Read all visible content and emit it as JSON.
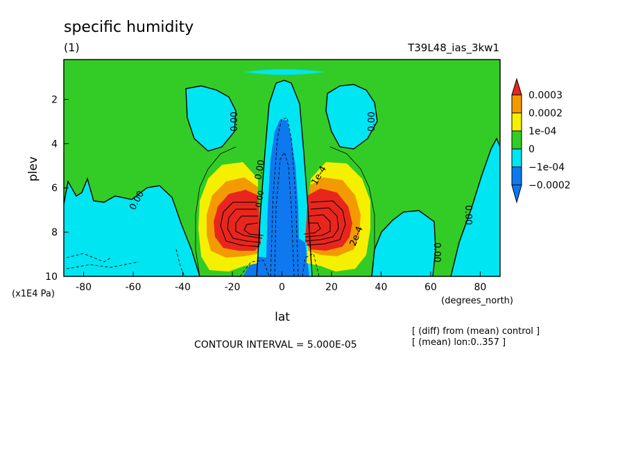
{
  "chart_data": {
    "type": "contour",
    "title": "specific humidity",
    "subtitle": "(1)",
    "run_label": "T39L48_ias_3kw1",
    "xlabel": "lat",
    "x_units": "(degrees_north)",
    "ylabel": "plev",
    "y_units": "(x1E4 Pa)",
    "xlim": [
      -88,
      88
    ],
    "ylim": [
      10,
      0.2
    ],
    "y_inverted": true,
    "x_ticks": [
      -80,
      -60,
      -40,
      -20,
      0,
      20,
      40,
      60,
      80
    ],
    "y_ticks": [
      2,
      4,
      6,
      8,
      10
    ],
    "contour_interval_text": "CONTOUR INTERVAL = 5.000E-05",
    "notes": [
      "[ (diff) from (mean) control ]",
      "[ (mean) lon:0..357 ]"
    ],
    "contour_labels": [
      "0.00",
      "0.00",
      "0.00",
      "0.00",
      "0.00",
      "0.00",
      "0.00",
      "1e-4",
      "2e-4"
    ],
    "colorbar": {
      "levels": [
        {
          "label": "0.0003",
          "color": "#e8261e"
        },
        {
          "label": "0.0002",
          "color": "#f39a00"
        },
        {
          "label": "1e-04",
          "color": "#f5f000"
        },
        {
          "label": "0",
          "color": "#33cc26"
        },
        {
          "label": "−1e-04",
          "color": "#00e5f2"
        },
        {
          "label": "−0.0002",
          "color": "#0e78ef"
        }
      ]
    },
    "colors": {
      "c_neg2": "#0e78ef",
      "c_neg1": "#00e5f2",
      "c_zero": "#33cc26",
      "c_pos1": "#f5f000",
      "c_pos2": "#f39a00",
      "c_pos3": "#e8261e"
    }
  }
}
